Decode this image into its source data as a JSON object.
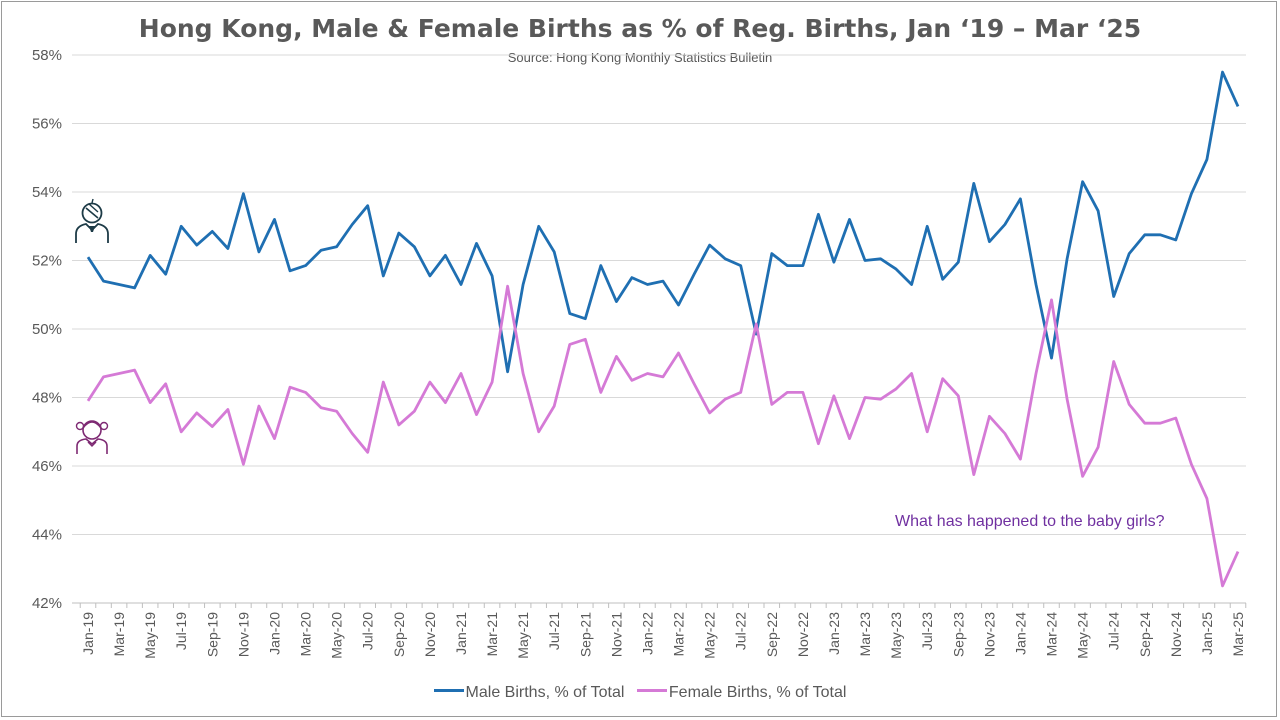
{
  "title": "Hong Kong, Male & Female Births as % of Reg. Births, Jan ‘19 – Mar ‘25",
  "subtitle": "Source: Hong Kong Monthly Statistics Bulletin",
  "annotation": "What has happened to the baby girls?",
  "icons": {
    "male": "boy-face-icon",
    "female": "girl-face-icon"
  },
  "colors": {
    "male": "#1f6fb2",
    "female": "#d57ad6",
    "annotation": "#7030a0",
    "grid": "#d9d9d9",
    "text": "#595959"
  },
  "chart_data": {
    "type": "line",
    "ylim": [
      42,
      58
    ],
    "y_ticks": [
      "42%",
      "44%",
      "46%",
      "48%",
      "50%",
      "52%",
      "54%",
      "56%",
      "58%"
    ],
    "grid": true,
    "legend_position": "bottom",
    "categories": [
      "Jan-19",
      "Feb-19",
      "Mar-19",
      "Apr-19",
      "May-19",
      "Jun-19",
      "Jul-19",
      "Aug-19",
      "Sep-19",
      "Oct-19",
      "Nov-19",
      "Dec-19",
      "Jan-20",
      "Feb-20",
      "Mar-20",
      "Apr-20",
      "May-20",
      "Jun-20",
      "Jul-20",
      "Aug-20",
      "Sep-20",
      "Oct-20",
      "Nov-20",
      "Dec-20",
      "Jan-21",
      "Feb-21",
      "Mar-21",
      "Apr-21",
      "May-21",
      "Jun-21",
      "Jul-21",
      "Aug-21",
      "Sep-21",
      "Oct-21",
      "Nov-21",
      "Dec-21",
      "Jan-22",
      "Feb-22",
      "Mar-22",
      "Apr-22",
      "May-22",
      "Jun-22",
      "Jul-22",
      "Aug-22",
      "Sep-22",
      "Oct-22",
      "Nov-22",
      "Dec-22",
      "Jan-23",
      "Feb-23",
      "Mar-23",
      "Apr-23",
      "May-23",
      "Jun-23",
      "Jul-23",
      "Aug-23",
      "Sep-23",
      "Oct-23",
      "Nov-23",
      "Dec-23",
      "Jan-24",
      "Feb-24",
      "Mar-24",
      "Apr-24",
      "May-24",
      "Jun-24",
      "Jul-24",
      "Aug-24",
      "Sep-24",
      "Oct-24",
      "Nov-24",
      "Dec-24",
      "Jan-25",
      "Feb-25",
      "Mar-25"
    ],
    "x_tick_labels": [
      "Jan-19",
      "Mar-19",
      "May-19",
      "Jul-19",
      "Sep-19",
      "Nov-19",
      "Jan-20",
      "Mar-20",
      "May-20",
      "Jul-20",
      "Sep-20",
      "Nov-20",
      "Jan-21",
      "Mar-21",
      "May-21",
      "Jul-21",
      "Sep-21",
      "Nov-21",
      "Jan-22",
      "Mar-22",
      "May-22",
      "Jul-22",
      "Sep-22",
      "Nov-22",
      "Jan-23",
      "Mar-23",
      "May-23",
      "Jul-23",
      "Sep-23",
      "Nov-23",
      "Jan-24",
      "Mar-24",
      "May-24",
      "Jul-24",
      "Sep-24",
      "Nov-24",
      "Jan-25",
      "Mar-25"
    ],
    "series": [
      {
        "name": "Male Births, % of Total",
        "values": [
          52.1,
          51.4,
          51.3,
          51.2,
          52.15,
          51.6,
          53.0,
          52.45,
          52.85,
          52.35,
          53.95,
          52.25,
          53.2,
          51.7,
          51.85,
          52.3,
          52.4,
          53.05,
          53.6,
          51.55,
          52.8,
          52.4,
          51.55,
          52.15,
          51.3,
          52.5,
          51.55,
          48.75,
          51.3,
          53.0,
          52.25,
          50.45,
          50.3,
          51.85,
          50.8,
          51.5,
          51.3,
          51.4,
          50.7,
          51.6,
          52.45,
          52.05,
          51.85,
          49.85,
          52.2,
          51.85,
          51.85,
          53.35,
          51.95,
          53.2,
          52.0,
          52.05,
          51.75,
          51.3,
          53.0,
          51.45,
          51.95,
          54.25,
          52.55,
          53.05,
          53.8,
          51.3,
          49.15,
          52.05,
          54.3,
          53.45,
          50.95,
          52.2,
          52.75,
          52.75,
          52.6,
          53.95,
          54.95,
          57.5,
          56.5
        ]
      },
      {
        "name": "Female Births, % of Total",
        "values": [
          47.9,
          48.6,
          48.7,
          48.8,
          47.85,
          48.4,
          47.0,
          47.55,
          47.15,
          47.65,
          46.05,
          47.75,
          46.8,
          48.3,
          48.15,
          47.7,
          47.6,
          46.95,
          46.4,
          48.45,
          47.2,
          47.6,
          48.45,
          47.85,
          48.7,
          47.5,
          48.45,
          51.25,
          48.7,
          47.0,
          47.75,
          49.55,
          49.7,
          48.15,
          49.2,
          48.5,
          48.7,
          48.6,
          49.3,
          48.4,
          47.55,
          47.95,
          48.15,
          50.15,
          47.8,
          48.15,
          48.15,
          46.65,
          48.05,
          46.8,
          48.0,
          47.95,
          48.25,
          48.7,
          47.0,
          48.55,
          48.05,
          45.75,
          47.45,
          46.95,
          46.2,
          48.7,
          50.85,
          47.95,
          45.7,
          46.55,
          49.05,
          47.8,
          47.25,
          47.25,
          47.4,
          46.05,
          45.05,
          42.5,
          43.5
        ]
      }
    ]
  }
}
